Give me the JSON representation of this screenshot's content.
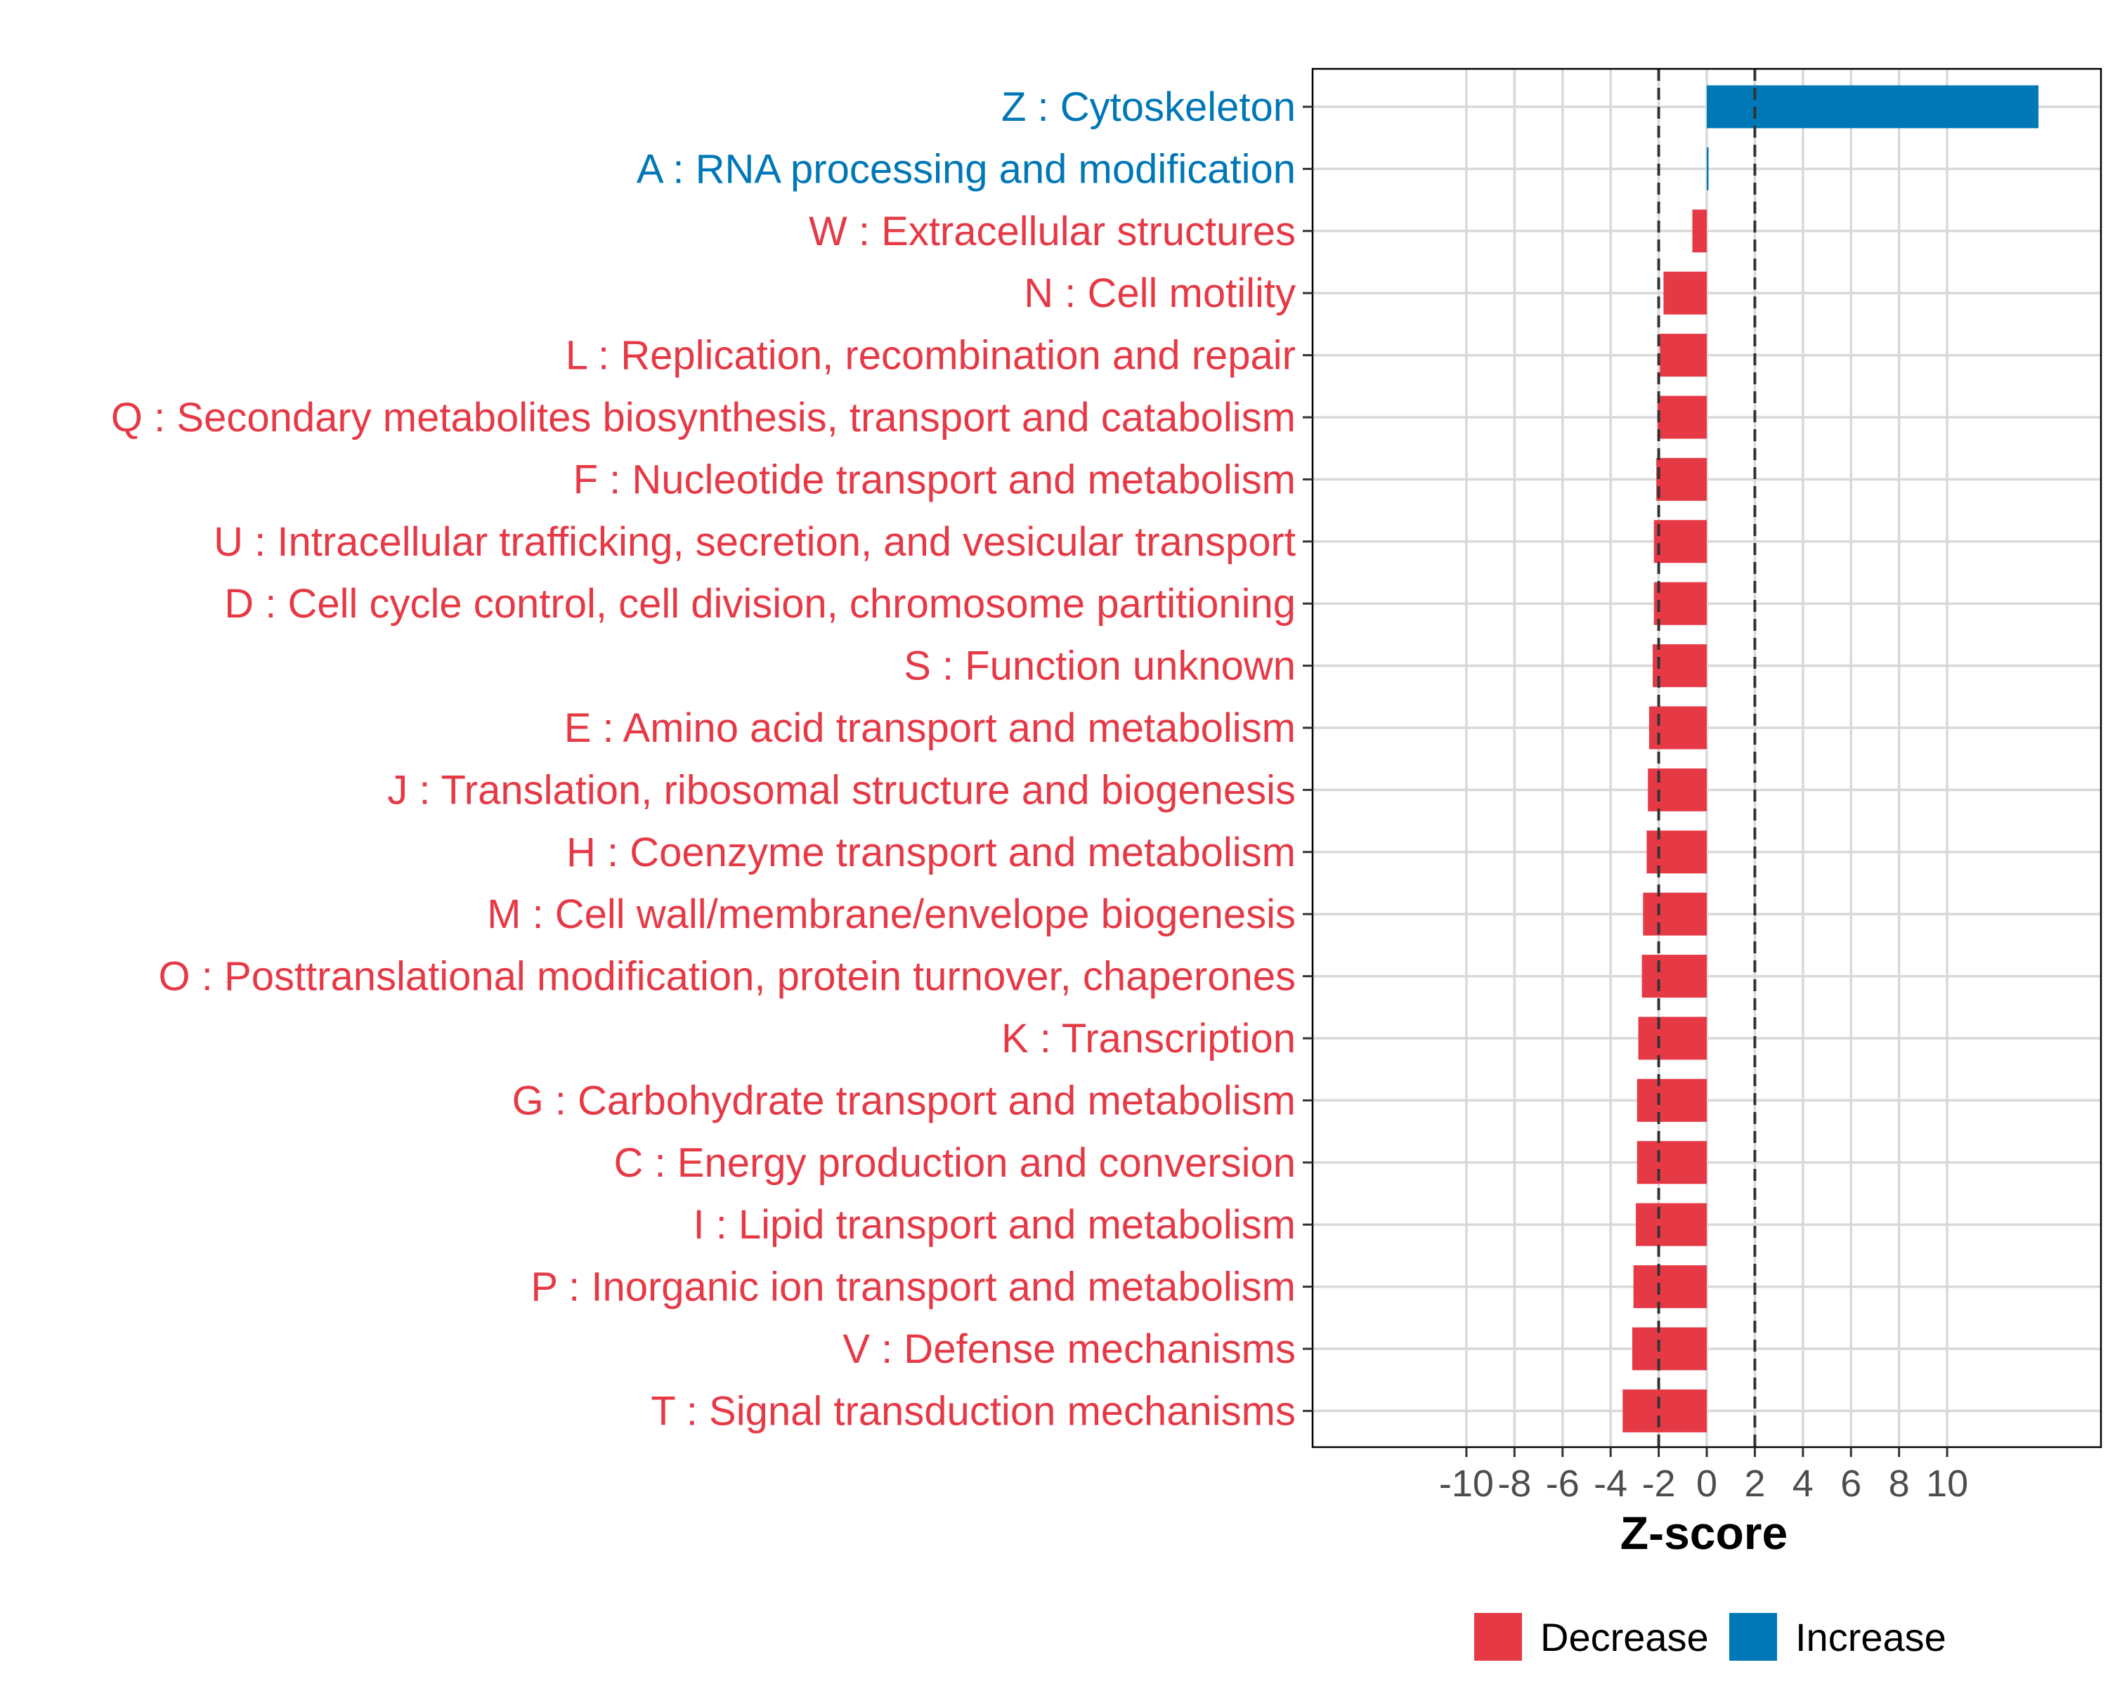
{
  "chart_data": {
    "type": "bar",
    "orientation": "horizontal",
    "xlabel": "Z-score",
    "xlim": [
      -16.4,
      16.4
    ],
    "xticks": [
      -10,
      -8,
      -6,
      -4,
      -2,
      0,
      2,
      4,
      6,
      8,
      10
    ],
    "xtick_labels": [
      "-10",
      "-8",
      "-6",
      "-4",
      "-2",
      "0",
      "2",
      "4",
      "6",
      "8",
      "10"
    ],
    "threshold_lines": [
      -2,
      2
    ],
    "grid": true,
    "colors": {
      "Decrease": "#e63946",
      "Increase": "#0077b6"
    },
    "categories": [
      "Z : Cytoskeleton",
      "A : RNA processing and modification",
      "W : Extracellular structures",
      "N : Cell motility",
      "L : Replication, recombination and repair",
      "Q : Secondary metabolites biosynthesis, transport and catabolism",
      "F : Nucleotide transport and metabolism",
      "U : Intracellular trafficking, secretion, and vesicular transport",
      "D : Cell cycle control, cell division, chromosome partitioning",
      "S : Function unknown",
      "E : Amino acid transport and metabolism",
      "J : Translation, ribosomal structure and biogenesis",
      "H : Coenzyme transport and metabolism",
      "M : Cell wall/membrane/envelope biogenesis",
      "O : Posttranslational modification, protein turnover, chaperones",
      "K : Transcription",
      "G : Carbohydrate transport and metabolism",
      "C : Energy production and conversion",
      "I : Lipid transport and metabolism",
      "P : Inorganic ion transport and metabolism",
      "V : Defense mechanisms",
      "T : Signal transduction mechanisms"
    ],
    "values": [
      13.8,
      0.05,
      -0.6,
      -1.8,
      -1.95,
      -2.05,
      -2.1,
      -2.2,
      -2.2,
      -2.25,
      -2.4,
      -2.45,
      -2.5,
      -2.65,
      -2.7,
      -2.85,
      -2.9,
      -2.9,
      -2.95,
      -3.05,
      -3.1,
      -3.5
    ],
    "groups": [
      "Increase",
      "Increase",
      "Decrease",
      "Decrease",
      "Decrease",
      "Decrease",
      "Decrease",
      "Decrease",
      "Decrease",
      "Decrease",
      "Decrease",
      "Decrease",
      "Decrease",
      "Decrease",
      "Decrease",
      "Decrease",
      "Decrease",
      "Decrease",
      "Decrease",
      "Decrease",
      "Decrease",
      "Decrease"
    ],
    "legend": {
      "position": "bottom",
      "entries": [
        {
          "label": "Decrease",
          "color": "#e63946"
        },
        {
          "label": "Increase",
          "color": "#0077b6"
        }
      ]
    }
  }
}
